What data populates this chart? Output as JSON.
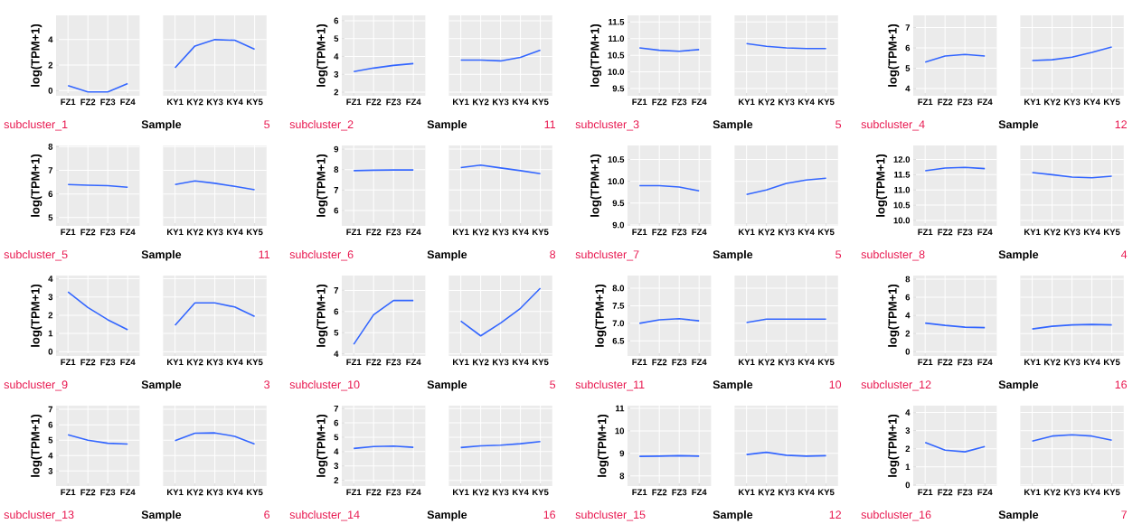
{
  "chart_data": [
    {
      "type": "line",
      "xlabel": "Sample",
      "ylabel": "log(TPM+1)",
      "annotations": [
        "subcluster_1",
        "5"
      ],
      "grid": true,
      "categories": [
        "FZ1",
        "FZ2",
        "FZ3",
        "FZ4",
        "KY1",
        "KY2",
        "KY3",
        "KY4",
        "KY5"
      ],
      "ylim": [
        -0.4,
        5.9
      ],
      "yticks": [
        0,
        2,
        4
      ],
      "series": [
        {
          "color": "#3366ff",
          "values": [
            0.4,
            -0.1,
            -0.1,
            0.55,
            null,
            null,
            null,
            null,
            null
          ]
        },
        {
          "color": "#3366ff",
          "values": [
            null,
            null,
            null,
            null,
            1.8,
            3.5,
            4.0,
            3.95,
            3.25
          ]
        }
      ]
    },
    {
      "type": "line",
      "xlabel": "Sample",
      "ylabel": "log(TPM+1)",
      "annotations": [
        "subcluster_2",
        "11"
      ],
      "grid": true,
      "categories": [
        "FZ1",
        "FZ2",
        "FZ3",
        "FZ4",
        "KY1",
        "KY2",
        "KY3",
        "KY4",
        "KY5"
      ],
      "ylim": [
        1.8,
        6.3
      ],
      "yticks": [
        2,
        3,
        4,
        5,
        6
      ],
      "series": [
        {
          "color": "#3366ff",
          "values": [
            3.15,
            3.35,
            3.5,
            3.6,
            null,
            null,
            null,
            null,
            null
          ]
        },
        {
          "color": "#3366ff",
          "values": [
            null,
            null,
            null,
            null,
            3.8,
            3.8,
            3.75,
            3.95,
            4.35
          ]
        }
      ]
    },
    {
      "type": "line",
      "xlabel": "Sample",
      "ylabel": "log(TPM+1)",
      "annotations": [
        "subcluster_3",
        "5"
      ],
      "grid": true,
      "categories": [
        "FZ1",
        "FZ2",
        "FZ3",
        "FZ4",
        "KY1",
        "KY2",
        "KY3",
        "KY4",
        "KY5"
      ],
      "ylim": [
        9.28,
        11.7
      ],
      "yticks": [
        9.5,
        {
          "value": 10,
          "label": "10.0"
        },
        10.5,
        {
          "value": 11,
          "label": "11.0"
        },
        11.5
      ],
      "series": [
        {
          "color": "#3366ff",
          "values": [
            10.72,
            10.65,
            10.62,
            10.67,
            null,
            null,
            null,
            null,
            null
          ]
        },
        {
          "color": "#3366ff",
          "values": [
            null,
            null,
            null,
            null,
            10.85,
            10.77,
            10.72,
            10.7,
            10.7
          ]
        }
      ]
    },
    {
      "type": "line",
      "xlabel": "Sample",
      "ylabel": "log(TPM+1)",
      "annotations": [
        "subcluster_4",
        "12"
      ],
      "grid": true,
      "categories": [
        "FZ1",
        "FZ2",
        "FZ3",
        "FZ4",
        "KY1",
        "KY2",
        "KY3",
        "KY4",
        "KY5"
      ],
      "ylim": [
        3.65,
        7.6
      ],
      "yticks": [
        4,
        5,
        6,
        7
      ],
      "series": [
        {
          "color": "#3366ff",
          "values": [
            5.3,
            5.6,
            5.68,
            5.6,
            null,
            null,
            null,
            null,
            null
          ]
        },
        {
          "color": "#3366ff",
          "values": [
            null,
            null,
            null,
            null,
            5.38,
            5.42,
            5.55,
            5.78,
            6.05
          ]
        }
      ]
    },
    {
      "type": "line",
      "xlabel": "Sample",
      "ylabel": "log(TPM+1)",
      "annotations": [
        "subcluster_5",
        "11"
      ],
      "grid": true,
      "categories": [
        "FZ1",
        "FZ2",
        "FZ3",
        "FZ4",
        "KY1",
        "KY2",
        "KY3",
        "KY4",
        "KY5"
      ],
      "ylim": [
        4.65,
        8.05
      ],
      "yticks": [
        5,
        6,
        7,
        8
      ],
      "series": [
        {
          "color": "#3366ff",
          "values": [
            6.4,
            6.37,
            6.35,
            6.28,
            null,
            null,
            null,
            null,
            null
          ]
        },
        {
          "color": "#3366ff",
          "values": [
            null,
            null,
            null,
            null,
            6.4,
            6.55,
            6.45,
            6.32,
            6.18
          ]
        }
      ]
    },
    {
      "type": "line",
      "xlabel": "Sample",
      "ylabel": "log(TPM+1)",
      "annotations": [
        "subcluster_6",
        "8"
      ],
      "grid": true,
      "categories": [
        "FZ1",
        "FZ2",
        "FZ3",
        "FZ4",
        "KY1",
        "KY2",
        "KY3",
        "KY4",
        "KY5"
      ],
      "ylim": [
        5.25,
        9.18
      ],
      "yticks": [
        6,
        7,
        8,
        9
      ],
      "series": [
        {
          "color": "#3366ff",
          "values": [
            7.95,
            7.97,
            7.98,
            7.98,
            null,
            null,
            null,
            null,
            null
          ]
        },
        {
          "color": "#3366ff",
          "values": [
            null,
            null,
            null,
            null,
            8.1,
            8.22,
            8.08,
            7.95,
            7.8
          ]
        }
      ]
    },
    {
      "type": "line",
      "xlabel": "Sample",
      "ylabel": "log(TPM+1)",
      "annotations": [
        "subcluster_7",
        "5"
      ],
      "grid": true,
      "categories": [
        "FZ1",
        "FZ2",
        "FZ3",
        "FZ4",
        "KY1",
        "KY2",
        "KY3",
        "KY4",
        "KY5"
      ],
      "ylim": [
        8.98,
        10.82
      ],
      "yticks": [
        {
          "value": 9,
          "label": "9.0"
        },
        9.5,
        {
          "value": 10,
          "label": "10.0"
        },
        10.5
      ],
      "series": [
        {
          "color": "#3366ff",
          "values": [
            9.9,
            9.9,
            9.87,
            9.78,
            null,
            null,
            null,
            null,
            null
          ]
        },
        {
          "color": "#3366ff",
          "values": [
            null,
            null,
            null,
            null,
            9.7,
            9.8,
            9.95,
            10.03,
            10.07
          ]
        }
      ]
    },
    {
      "type": "line",
      "xlabel": "Sample",
      "ylabel": "log(TPM+1)",
      "annotations": [
        "subcluster_8",
        "4"
      ],
      "grid": true,
      "categories": [
        "FZ1",
        "FZ2",
        "FZ3",
        "FZ4",
        "KY1",
        "KY2",
        "KY3",
        "KY4",
        "KY5"
      ],
      "ylim": [
        9.82,
        12.46
      ],
      "yticks": [
        {
          "value": 10,
          "label": "10.0"
        },
        10.5,
        {
          "value": 11,
          "label": "11.0"
        },
        11.5,
        {
          "value": 12,
          "label": "12.0"
        }
      ],
      "series": [
        {
          "color": "#3366ff",
          "values": [
            11.63,
            11.72,
            11.74,
            11.7,
            null,
            null,
            null,
            null,
            null
          ]
        },
        {
          "color": "#3366ff",
          "values": [
            null,
            null,
            null,
            null,
            11.57,
            11.5,
            11.42,
            11.4,
            11.45
          ]
        }
      ]
    },
    {
      "type": "line",
      "xlabel": "Sample",
      "ylabel": "log(TPM+1)",
      "annotations": [
        "subcluster_9",
        "3"
      ],
      "grid": true,
      "categories": [
        "FZ1",
        "FZ2",
        "FZ3",
        "FZ4",
        "KY1",
        "KY2",
        "KY3",
        "KY4",
        "KY5"
      ],
      "ylim": [
        -0.24,
        4.18
      ],
      "yticks": [
        0,
        1,
        2,
        3,
        4
      ],
      "series": [
        {
          "color": "#3366ff",
          "values": [
            3.28,
            2.42,
            1.75,
            1.2,
            null,
            null,
            null,
            null,
            null
          ]
        },
        {
          "color": "#3366ff",
          "values": [
            null,
            null,
            null,
            null,
            1.45,
            2.68,
            2.68,
            2.45,
            1.93
          ]
        }
      ]
    },
    {
      "type": "line",
      "xlabel": "Sample",
      "ylabel": "log(TPM+1)",
      "annotations": [
        "subcluster_10",
        "5"
      ],
      "grid": true,
      "categories": [
        "FZ1",
        "FZ2",
        "FZ3",
        "FZ4",
        "KY1",
        "KY2",
        "KY3",
        "KY4",
        "KY5"
      ],
      "ylim": [
        3.9,
        7.7
      ],
      "yticks": [
        4,
        5,
        6,
        7
      ],
      "series": [
        {
          "color": "#3366ff",
          "values": [
            4.45,
            5.85,
            6.52,
            6.52,
            null,
            null,
            null,
            null,
            null
          ]
        },
        {
          "color": "#3366ff",
          "values": [
            null,
            null,
            null,
            null,
            5.55,
            4.85,
            5.45,
            6.15,
            7.1
          ]
        }
      ]
    },
    {
      "type": "line",
      "xlabel": "Sample",
      "ylabel": "log(TPM+1)",
      "annotations": [
        "subcluster_11",
        "10"
      ],
      "grid": true,
      "categories": [
        "FZ1",
        "FZ2",
        "FZ3",
        "FZ4",
        "KY1",
        "KY2",
        "KY3",
        "KY4",
        "KY5"
      ],
      "ylim": [
        6.07,
        8.36
      ],
      "yticks": [
        6.5,
        {
          "value": 7,
          "label": "7.0"
        },
        7.5,
        {
          "value": 8,
          "label": "8.0"
        }
      ],
      "series": [
        {
          "color": "#3366ff",
          "values": [
            7.0,
            7.1,
            7.13,
            7.07,
            null,
            null,
            null,
            null,
            null
          ]
        },
        {
          "color": "#3366ff",
          "values": [
            null,
            null,
            null,
            null,
            7.02,
            7.12,
            7.12,
            7.12,
            7.12
          ]
        }
      ]
    },
    {
      "type": "line",
      "xlabel": "Sample",
      "ylabel": "log(TPM+1)",
      "annotations": [
        "subcluster_12",
        "16"
      ],
      "grid": true,
      "categories": [
        "FZ1",
        "FZ2",
        "FZ3",
        "FZ4",
        "KY1",
        "KY2",
        "KY3",
        "KY4",
        "KY5"
      ],
      "ylim": [
        -0.48,
        8.4
      ],
      "yticks": [
        0,
        2,
        4,
        6,
        8
      ],
      "series": [
        {
          "color": "#3366ff",
          "values": [
            3.15,
            2.9,
            2.7,
            2.65,
            null,
            null,
            null,
            null,
            null
          ]
        },
        {
          "color": "#3366ff",
          "values": [
            null,
            null,
            null,
            null,
            2.5,
            2.8,
            2.95,
            3.0,
            2.95
          ]
        }
      ]
    },
    {
      "type": "line",
      "xlabel": "Sample",
      "ylabel": "log(TPM+1)",
      "annotations": [
        "subcluster_13",
        "6"
      ],
      "grid": true,
      "categories": [
        "FZ1",
        "FZ2",
        "FZ3",
        "FZ4",
        "KY1",
        "KY2",
        "KY3",
        "KY4",
        "KY5"
      ],
      "ylim": [
        2.02,
        7.24
      ],
      "yticks": [
        3,
        4,
        5,
        6,
        7
      ],
      "series": [
        {
          "color": "#3366ff",
          "values": [
            5.35,
            5.0,
            4.8,
            4.75,
            null,
            null,
            null,
            null,
            null
          ]
        },
        {
          "color": "#3366ff",
          "values": [
            null,
            null,
            null,
            null,
            4.97,
            5.45,
            5.47,
            5.25,
            4.75
          ]
        }
      ]
    },
    {
      "type": "line",
      "xlabel": "Sample",
      "ylabel": "log(TPM+1)",
      "annotations": [
        "subcluster_14",
        "16"
      ],
      "grid": true,
      "categories": [
        "FZ1",
        "FZ2",
        "FZ3",
        "FZ4",
        "KY1",
        "KY2",
        "KY3",
        "KY4",
        "KY5"
      ],
      "ylim": [
        1.6,
        7.2
      ],
      "yticks": [
        2,
        3,
        4,
        5,
        6,
        7
      ],
      "series": [
        {
          "color": "#3366ff",
          "values": [
            4.22,
            4.35,
            4.38,
            4.3,
            null,
            null,
            null,
            null,
            null
          ]
        },
        {
          "color": "#3366ff",
          "values": [
            null,
            null,
            null,
            null,
            4.28,
            4.4,
            4.45,
            4.55,
            4.7
          ]
        }
      ]
    },
    {
      "type": "line",
      "xlabel": "Sample",
      "ylabel": "log(TPM+1)",
      "annotations": [
        "subcluster_15",
        "12"
      ],
      "grid": true,
      "categories": [
        "FZ1",
        "FZ2",
        "FZ3",
        "FZ4",
        "KY1",
        "KY2",
        "KY3",
        "KY4",
        "KY5"
      ],
      "ylim": [
        7.55,
        11.12
      ],
      "yticks": [
        8,
        9,
        10,
        11
      ],
      "series": [
        {
          "color": "#3366ff",
          "values": [
            8.87,
            8.88,
            8.9,
            8.88,
            null,
            null,
            null,
            null,
            null
          ]
        },
        {
          "color": "#3366ff",
          "values": [
            null,
            null,
            null,
            null,
            8.95,
            9.05,
            8.92,
            8.88,
            8.9
          ]
        }
      ]
    },
    {
      "type": "line",
      "xlabel": "Sample",
      "ylabel": "log(TPM+1)",
      "annotations": [
        "subcluster_16",
        "7"
      ],
      "grid": true,
      "categories": [
        "FZ1",
        "FZ2",
        "FZ3",
        "FZ4",
        "KY1",
        "KY2",
        "KY3",
        "KY4",
        "KY5"
      ],
      "ylim": [
        -0.06,
        4.38
      ],
      "yticks": [
        0,
        1,
        2,
        3,
        4
      ],
      "series": [
        {
          "color": "#3366ff",
          "values": [
            2.35,
            1.92,
            1.83,
            2.12,
            null,
            null,
            null,
            null,
            null
          ]
        },
        {
          "color": "#3366ff",
          "values": [
            null,
            null,
            null,
            null,
            2.42,
            2.7,
            2.77,
            2.7,
            2.47
          ]
        }
      ]
    }
  ]
}
